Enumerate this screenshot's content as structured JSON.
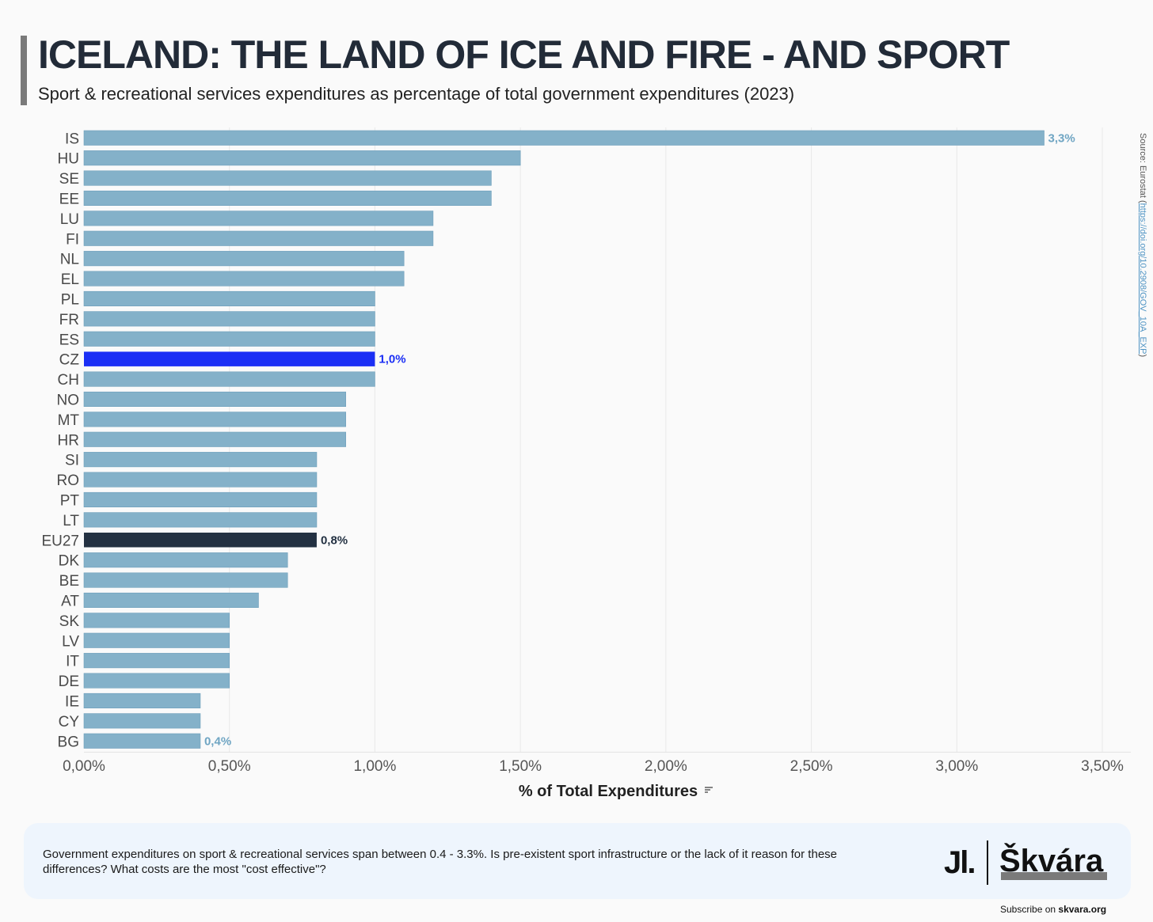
{
  "header": {
    "title": "ICELAND: THE LAND OF ICE AND FIRE - AND SPORT",
    "subtitle": "Sport & recreational services expenditures as percentage of total government expenditures (2023)"
  },
  "source": {
    "prefix": "Source: Eurostat (",
    "url_text": "https://doi.org/10.2908/GOV_10A_EXP",
    "suffix": ")"
  },
  "footer": {
    "text": "Government expenditures on sport & recreational services span between 0.4 - 3.3%. Is pre-existent sport infrastructure or the lack of it reason for these differences? What costs are the most \"cost effective\"?",
    "logo_mark": "Jl.",
    "logo_name": "Škvára",
    "subscribe_prefix": "Subscribe on ",
    "subscribe_site": "skvara.org"
  },
  "colors": {
    "default_bar": "#84b1c9",
    "highlight_cz": "#1b2ff5",
    "highlight_eu": "#233142",
    "label_default": "#6fa5c3"
  },
  "chart_data": {
    "type": "bar",
    "orientation": "horizontal",
    "xlabel": "% of Total Expenditures",
    "xlabel_icon": "sort-icon",
    "xlim": [
      0,
      3.5
    ],
    "xticks": [
      0,
      0.5,
      1.0,
      1.5,
      2.0,
      2.5,
      3.0,
      3.5
    ],
    "xtick_labels": [
      "0,00%",
      "0,50%",
      "1,00%",
      "1,50%",
      "2,00%",
      "2,50%",
      "3,00%",
      "3,50%"
    ],
    "grid": true,
    "categories": [
      "IS",
      "HU",
      "SE",
      "EE",
      "LU",
      "FI",
      "NL",
      "EL",
      "PL",
      "FR",
      "ES",
      "CZ",
      "CH",
      "NO",
      "MT",
      "HR",
      "SI",
      "RO",
      "PT",
      "LT",
      "EU27",
      "DK",
      "BE",
      "AT",
      "SK",
      "LV",
      "IT",
      "DE",
      "IE",
      "CY",
      "BG"
    ],
    "values": [
      3.3,
      1.5,
      1.4,
      1.4,
      1.2,
      1.2,
      1.1,
      1.1,
      1.0,
      1.0,
      1.0,
      1.0,
      1.0,
      0.9,
      0.9,
      0.9,
      0.8,
      0.8,
      0.8,
      0.8,
      0.8,
      0.7,
      0.7,
      0.6,
      0.5,
      0.5,
      0.5,
      0.5,
      0.4,
      0.4,
      0.4
    ],
    "highlights": {
      "CZ": "highlight_cz",
      "EU27": "highlight_eu"
    },
    "data_labels": [
      {
        "category": "IS",
        "text": "3,3%",
        "color": "#6fa5c3"
      },
      {
        "category": "CZ",
        "text": "1,0%",
        "color": "#1b2ff5"
      },
      {
        "category": "EU27",
        "text": "0,8%",
        "color": "#233142"
      },
      {
        "category": "BG",
        "text": "0,4%",
        "color": "#6fa5c3"
      }
    ]
  }
}
